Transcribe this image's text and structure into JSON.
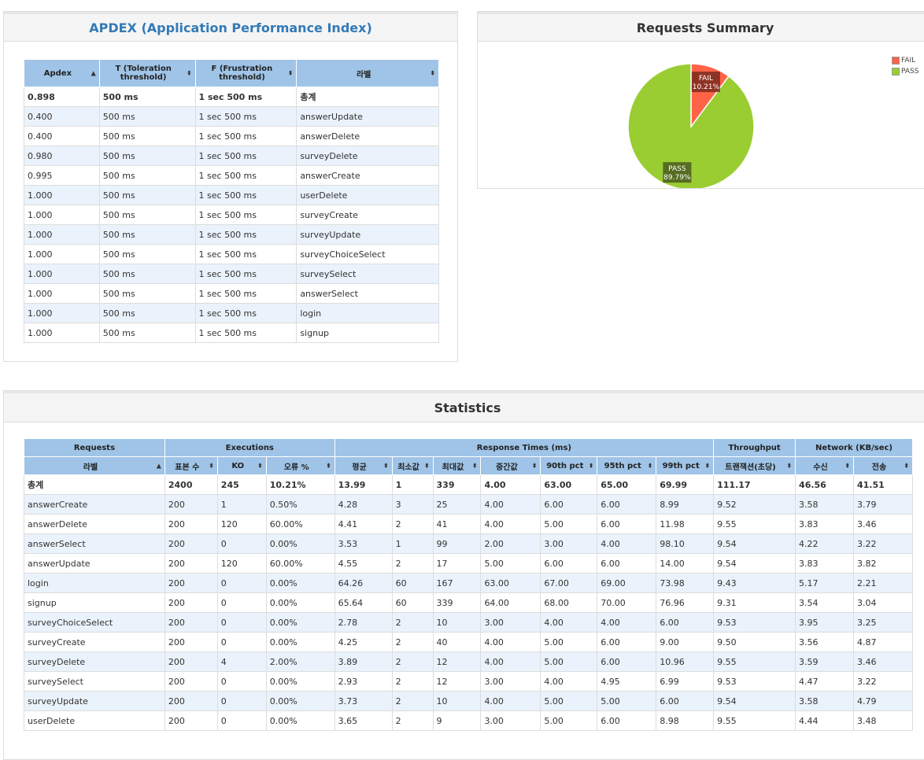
{
  "apdex": {
    "title": "APDEX (Application Performance Index)",
    "headers": [
      "Apdex",
      "T (Toleration threshold)",
      "F (Frustration threshold)",
      "라벨"
    ],
    "rows": [
      [
        "0.898",
        "500 ms",
        "1 sec 500 ms",
        "총계"
      ],
      [
        "0.400",
        "500 ms",
        "1 sec 500 ms",
        "answerUpdate"
      ],
      [
        "0.400",
        "500 ms",
        "1 sec 500 ms",
        "answerDelete"
      ],
      [
        "0.980",
        "500 ms",
        "1 sec 500 ms",
        "surveyDelete"
      ],
      [
        "0.995",
        "500 ms",
        "1 sec 500 ms",
        "answerCreate"
      ],
      [
        "1.000",
        "500 ms",
        "1 sec 500 ms",
        "userDelete"
      ],
      [
        "1.000",
        "500 ms",
        "1 sec 500 ms",
        "surveyCreate"
      ],
      [
        "1.000",
        "500 ms",
        "1 sec 500 ms",
        "surveyUpdate"
      ],
      [
        "1.000",
        "500 ms",
        "1 sec 500 ms",
        "surveyChoiceSelect"
      ],
      [
        "1.000",
        "500 ms",
        "1 sec 500 ms",
        "surveySelect"
      ],
      [
        "1.000",
        "500 ms",
        "1 sec 500 ms",
        "answerSelect"
      ],
      [
        "1.000",
        "500 ms",
        "1 sec 500 ms",
        "login"
      ],
      [
        "1.000",
        "500 ms",
        "1 sec 500 ms",
        "signup"
      ]
    ]
  },
  "summary": {
    "title": "Requests Summary",
    "colors": {
      "fail": "#ff6347",
      "pass": "#9acd32"
    },
    "chart_data": {
      "type": "pie",
      "categories": [
        "FAIL",
        "PASS"
      ],
      "values": [
        10.21,
        89.79
      ],
      "labels": [
        "10.21%",
        "89.79%"
      ],
      "legend": "top-right"
    }
  },
  "stats": {
    "title": "Statistics",
    "groups": [
      "Requests",
      "Executions",
      "Response Times (ms)",
      "Throughput",
      "Network (KB/sec)"
    ],
    "headers": [
      "라벨",
      "표본 수",
      "KO",
      "오류 %",
      "평균",
      "최소값",
      "최대값",
      "중간값",
      "90th pct",
      "95th pct",
      "99th pct",
      "트랜잭션(초당)",
      "수신",
      "전송"
    ],
    "rows": [
      [
        "총계",
        "2400",
        "245",
        "10.21%",
        "13.99",
        "1",
        "339",
        "4.00",
        "63.00",
        "65.00",
        "69.99",
        "111.17",
        "46.56",
        "41.51"
      ],
      [
        "answerCreate",
        "200",
        "1",
        "0.50%",
        "4.28",
        "3",
        "25",
        "4.00",
        "6.00",
        "6.00",
        "8.99",
        "9.52",
        "3.58",
        "3.79"
      ],
      [
        "answerDelete",
        "200",
        "120",
        "60.00%",
        "4.41",
        "2",
        "41",
        "4.00",
        "5.00",
        "6.00",
        "11.98",
        "9.55",
        "3.83",
        "3.46"
      ],
      [
        "answerSelect",
        "200",
        "0",
        "0.00%",
        "3.53",
        "1",
        "99",
        "2.00",
        "3.00",
        "4.00",
        "98.10",
        "9.54",
        "4.22",
        "3.22"
      ],
      [
        "answerUpdate",
        "200",
        "120",
        "60.00%",
        "4.55",
        "2",
        "17",
        "5.00",
        "6.00",
        "6.00",
        "14.00",
        "9.54",
        "3.83",
        "3.82"
      ],
      [
        "login",
        "200",
        "0",
        "0.00%",
        "64.26",
        "60",
        "167",
        "63.00",
        "67.00",
        "69.00",
        "73.98",
        "9.43",
        "5.17",
        "2.21"
      ],
      [
        "signup",
        "200",
        "0",
        "0.00%",
        "65.64",
        "60",
        "339",
        "64.00",
        "68.00",
        "70.00",
        "76.96",
        "9.31",
        "3.54",
        "3.04"
      ],
      [
        "surveyChoiceSelect",
        "200",
        "0",
        "0.00%",
        "2.78",
        "2",
        "10",
        "3.00",
        "4.00",
        "4.00",
        "6.00",
        "9.53",
        "3.95",
        "3.25"
      ],
      [
        "surveyCreate",
        "200",
        "0",
        "0.00%",
        "4.25",
        "2",
        "40",
        "4.00",
        "5.00",
        "6.00",
        "9.00",
        "9.50",
        "3.56",
        "4.87"
      ],
      [
        "surveyDelete",
        "200",
        "4",
        "2.00%",
        "3.89",
        "2",
        "12",
        "4.00",
        "5.00",
        "6.00",
        "10.96",
        "9.55",
        "3.59",
        "3.46"
      ],
      [
        "surveySelect",
        "200",
        "0",
        "0.00%",
        "2.93",
        "2",
        "12",
        "3.00",
        "4.00",
        "4.95",
        "6.99",
        "9.53",
        "4.47",
        "3.22"
      ],
      [
        "surveyUpdate",
        "200",
        "0",
        "0.00%",
        "3.73",
        "2",
        "10",
        "4.00",
        "5.00",
        "5.00",
        "6.00",
        "9.54",
        "3.58",
        "4.79"
      ],
      [
        "userDelete",
        "200",
        "0",
        "0.00%",
        "3.65",
        "2",
        "9",
        "3.00",
        "5.00",
        "6.00",
        "8.98",
        "9.55",
        "4.44",
        "3.48"
      ]
    ]
  }
}
